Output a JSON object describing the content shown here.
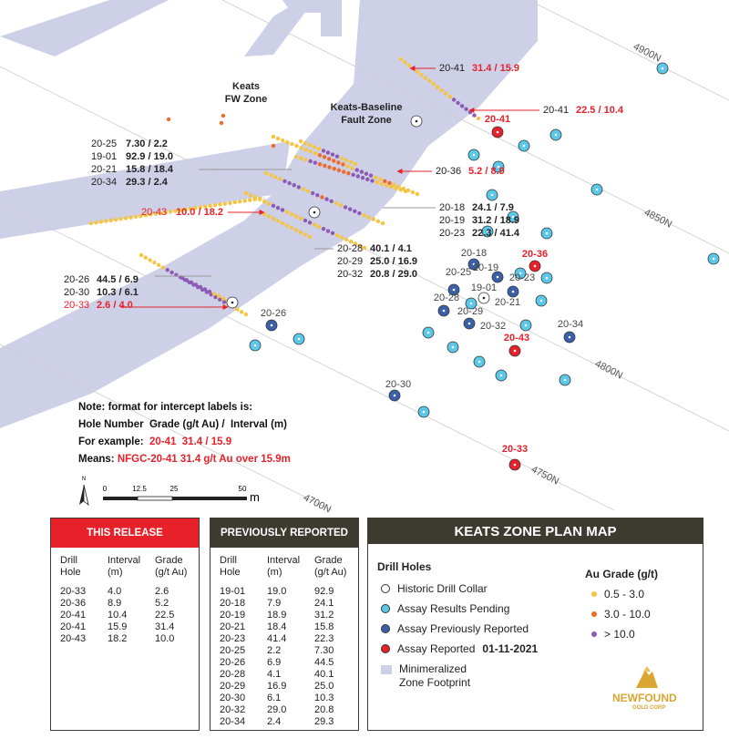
{
  "map": {
    "fw_zone": [
      "Keats",
      "FW Zone"
    ],
    "fault_zone": [
      "Keats-Baseline",
      "Fault Zone"
    ],
    "grid_labels": [
      "4900N",
      "4850N",
      "4800N",
      "4750N",
      "4700N"
    ],
    "intercepts": [
      {
        "rows": [
          {
            "hole": "20-41",
            "value": "31.4 / 15.9",
            "status": "new"
          }
        ]
      },
      {
        "rows": [
          {
            "hole": "20-41",
            "value": "22.5 / 10.4",
            "status": "new"
          }
        ]
      },
      {
        "rows": [
          {
            "hole": "20-25",
            "value": "7.30 / 2.2",
            "status": "previous"
          },
          {
            "hole": "19-01",
            "value": "92.9 / 19.0",
            "status": "previous"
          },
          {
            "hole": "20-21",
            "value": "15.8 / 18.4",
            "status": "previous"
          },
          {
            "hole": "20-34",
            "value": "29.3 / 2.4",
            "status": "previous"
          }
        ]
      },
      {
        "rows": [
          {
            "hole": "20-36",
            "value": "5.2 / 8.9",
            "status": "new"
          }
        ]
      },
      {
        "rows": [
          {
            "hole": "20-43",
            "value": "10.0 / 18.2",
            "status": "new-highlight"
          }
        ]
      },
      {
        "rows": [
          {
            "hole": "20-18",
            "value": "24.1 / 7.9",
            "status": "previous"
          },
          {
            "hole": "20-19",
            "value": "31.2 / 18.9",
            "status": "previous"
          },
          {
            "hole": "20-23",
            "value": "22.3 / 41.4",
            "status": "previous"
          }
        ]
      },
      {
        "rows": [
          {
            "hole": "20-28",
            "value": "40.1 / 4.1",
            "status": "previous"
          },
          {
            "hole": "20-29",
            "value": "25.0 / 16.9",
            "status": "previous"
          },
          {
            "hole": "20-32",
            "value": "20.8 / 29.0",
            "status": "previous"
          }
        ]
      },
      {
        "rows": [
          {
            "hole": "20-26",
            "value": "44.5 / 6.9",
            "status": "previous"
          },
          {
            "hole": "20-30",
            "value": "10.3 / 6.1",
            "status": "previous"
          },
          {
            "hole": "20-33",
            "value": "2.6 / 4.0",
            "status": "new-highlight"
          }
        ]
      }
    ],
    "hole_labels": [
      {
        "label": "20-41",
        "status": "new"
      },
      {
        "label": "20-18",
        "status": "previous"
      },
      {
        "label": "20-36",
        "status": "new"
      },
      {
        "label": "20-19",
        "status": "previous"
      },
      {
        "label": "20-25",
        "status": "previous"
      },
      {
        "label": "20-23",
        "status": "previous"
      },
      {
        "label": "19-01",
        "status": "previous"
      },
      {
        "label": "20-28",
        "status": "previous"
      },
      {
        "label": "20-21",
        "status": "previous"
      },
      {
        "label": "20-29",
        "status": "previous"
      },
      {
        "label": "20-32",
        "status": "previous"
      },
      {
        "label": "20-34",
        "status": "previous"
      },
      {
        "label": "20-43",
        "status": "new"
      },
      {
        "label": "20-26",
        "status": "previous"
      },
      {
        "label": "20-30",
        "status": "previous"
      },
      {
        "label": "20-33",
        "status": "new"
      }
    ]
  },
  "note": {
    "title": "Note: format for intercept labels is:",
    "format": "Hole Number  Grade (g/t Au) /  Interval (m)",
    "example_label": "For example:",
    "example": "20-41  31.4 / 15.9",
    "means_label": "Means:",
    "means": "NFGC-20-41 31.4 g/t Au over 15.9m"
  },
  "scale": {
    "north": "N",
    "labels": [
      "0",
      "12.5",
      "25",
      "50"
    ],
    "unit": "m"
  },
  "this_release": {
    "title": "THIS RELEASE",
    "headers": [
      [
        "Drill",
        "Hole"
      ],
      [
        "Interval",
        "(m)"
      ],
      [
        "Grade",
        "(g/t Au)"
      ]
    ],
    "rows": [
      [
        "20-33",
        "4.0",
        "2.6"
      ],
      [
        "20-36",
        "8.9",
        "5.2"
      ],
      [
        "20-41",
        "10.4",
        "22.5"
      ],
      [
        "20-41",
        "15.9",
        "31.4"
      ],
      [
        "20-43",
        "18.2",
        "10.0"
      ]
    ]
  },
  "previously_reported": {
    "title": "PREVIOUSLY REPORTED",
    "headers": [
      [
        "Drill",
        "Hole"
      ],
      [
        "Interval",
        "(m)"
      ],
      [
        "Grade",
        "(g/t Au)"
      ]
    ],
    "rows": [
      [
        "19-01",
        "19.0",
        "92.9"
      ],
      [
        "20-18",
        "7.9",
        "24.1"
      ],
      [
        "20-19",
        "18.9",
        "31.2"
      ],
      [
        "20-21",
        "18.4",
        "15.8"
      ],
      [
        "20-23",
        "41.4",
        "22.3"
      ],
      [
        "20-25",
        "2.2",
        "7.30"
      ],
      [
        "20-26",
        "6.9",
        "44.5"
      ],
      [
        "20-28",
        "4.1",
        "40.1"
      ],
      [
        "20-29",
        "16.9",
        "25.0"
      ],
      [
        "20-30",
        "6.1",
        "10.3"
      ],
      [
        "20-32",
        "29.0",
        "20.8"
      ],
      [
        "20-34",
        "2.4",
        "29.3"
      ]
    ]
  },
  "legend": {
    "title": "KEATS ZONE PLAN MAP",
    "drill_holes_title": "Drill Holes",
    "historic": "Historic Drill Collar",
    "pending": "Assay Results Pending",
    "previous": "Assay Previously Reported",
    "reported": "Assay Reported",
    "reported_date": "01-11-2021",
    "zone": [
      "Minimeralized",
      "Zone Footprint"
    ],
    "grade_title": "Au Grade (g/t)",
    "grades": [
      "0.5 - 3.0",
      "3.0 - 10.0",
      "> 10.0"
    ]
  },
  "logo": {
    "name": "NEWFOUND",
    "sub": "GOLD CORP"
  }
}
